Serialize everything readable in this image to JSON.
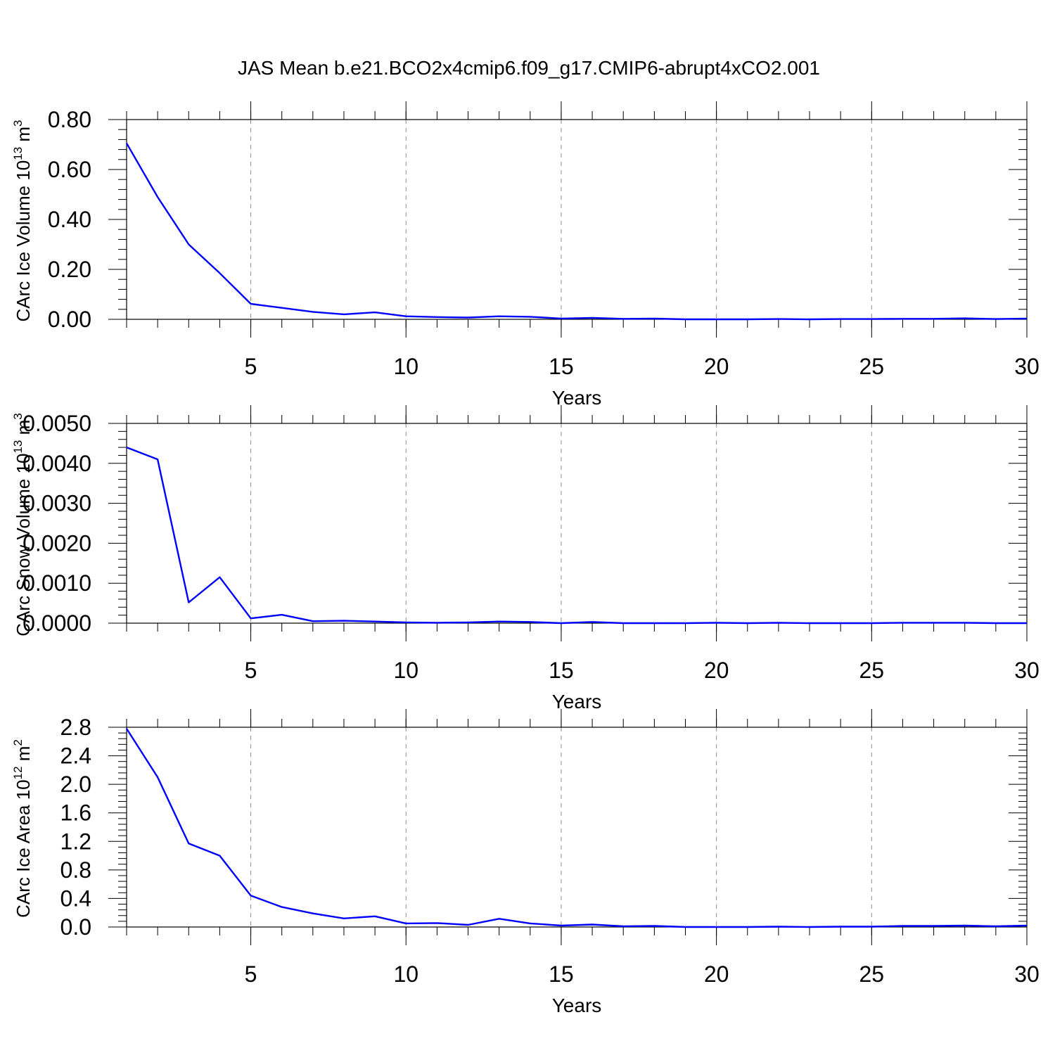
{
  "title": "JAS Mean b.e21.BCO2x4cmip6.f09_g17.CMIP6-abrupt4xCO2.001",
  "colors": {
    "series": "#0000ff",
    "grid": "#8c8c8c",
    "axes": "#000000"
  },
  "chart_data": [
    {
      "type": "line",
      "name": "ice-volume",
      "ylabel": "CArc Ice Volume 10",
      "ylabel_exp": "13",
      "ylabel_unit": " m",
      "ylabel_unit_exp": "3",
      "xlabel": "Years",
      "xlim": [
        1,
        30
      ],
      "ylim": [
        0,
        0.8
      ],
      "xticks": [
        5,
        10,
        15,
        20,
        25,
        30
      ],
      "yticks": [
        0,
        0.2,
        0.4,
        0.6,
        0.8
      ],
      "ytick_labels": [
        "0.00",
        "0.20",
        "0.40",
        "0.60",
        "0.80"
      ],
      "grid": "x-dashed",
      "x": [
        1,
        2,
        3,
        4,
        5,
        6,
        7,
        8,
        9,
        10,
        11,
        12,
        13,
        14,
        15,
        16,
        17,
        18,
        19,
        20,
        21,
        22,
        23,
        24,
        25,
        26,
        27,
        28,
        29,
        30
      ],
      "y": [
        0.705,
        0.49,
        0.3,
        0.185,
        0.062,
        0.046,
        0.03,
        0.02,
        0.028,
        0.012,
        0.009,
        0.007,
        0.012,
        0.01,
        0.003,
        0.006,
        0.002,
        0.003,
        0.0,
        0.0,
        0.0,
        0.001,
        0.0,
        0.001,
        0.001,
        0.002,
        0.002,
        0.004,
        0.001,
        0.003
      ]
    },
    {
      "type": "line",
      "name": "snow-volume",
      "ylabel": "CArc Snow Volume 10",
      "ylabel_exp": "13",
      "ylabel_unit": " m",
      "ylabel_unit_exp": "3",
      "xlabel": "Years",
      "xlim": [
        1,
        30
      ],
      "ylim": [
        0,
        0.005
      ],
      "xticks": [
        5,
        10,
        15,
        20,
        25,
        30
      ],
      "yticks": [
        0,
        0.001,
        0.002,
        0.003,
        0.004,
        0.005
      ],
      "ytick_labels": [
        "0.0000",
        "0.0010",
        "0.0020",
        "0.0030",
        "0.0040",
        "0.0050"
      ],
      "grid": "x-dashed",
      "x": [
        1,
        2,
        3,
        4,
        5,
        6,
        7,
        8,
        9,
        10,
        11,
        12,
        13,
        14,
        15,
        16,
        17,
        18,
        19,
        20,
        21,
        22,
        23,
        24,
        25,
        26,
        27,
        28,
        29,
        30
      ],
      "y": [
        0.0044,
        0.0041,
        0.00052,
        0.00115,
        0.00012,
        0.00021,
        5e-05,
        6e-05,
        4e-05,
        2e-05,
        1e-05,
        2e-05,
        4e-05,
        3e-05,
        0.0,
        3e-05,
        0.0,
        0.0,
        0.0,
        1e-05,
        0.0,
        1e-05,
        0.0,
        0.0,
        0.0,
        1e-05,
        1e-05,
        1e-05,
        0.0,
        0.0
      ]
    },
    {
      "type": "line",
      "name": "ice-area",
      "ylabel": "CArc Ice Area 10",
      "ylabel_exp": "12",
      "ylabel_unit": " m",
      "ylabel_unit_exp": "2",
      "xlabel": "Years",
      "xlim": [
        1,
        30
      ],
      "ylim": [
        0,
        2.8
      ],
      "xticks": [
        5,
        10,
        15,
        20,
        25,
        30
      ],
      "yticks": [
        0,
        0.4,
        0.8,
        1.2,
        1.6,
        2.0,
        2.4,
        2.8
      ],
      "ytick_labels": [
        "0.0",
        "0.4",
        "0.8",
        "1.2",
        "1.6",
        "2.0",
        "2.4",
        "2.8"
      ],
      "grid": "x-dashed",
      "x": [
        1,
        2,
        3,
        4,
        5,
        6,
        7,
        8,
        9,
        10,
        11,
        12,
        13,
        14,
        15,
        16,
        17,
        18,
        19,
        20,
        21,
        22,
        23,
        24,
        25,
        26,
        27,
        28,
        29,
        30
      ],
      "y": [
        2.78,
        2.1,
        1.17,
        1.0,
        0.44,
        0.28,
        0.19,
        0.12,
        0.15,
        0.05,
        0.055,
        0.03,
        0.115,
        0.05,
        0.02,
        0.035,
        0.01,
        0.015,
        0.0,
        0.0,
        0.0,
        0.005,
        0.0,
        0.005,
        0.005,
        0.015,
        0.015,
        0.02,
        0.01,
        0.02
      ]
    }
  ]
}
